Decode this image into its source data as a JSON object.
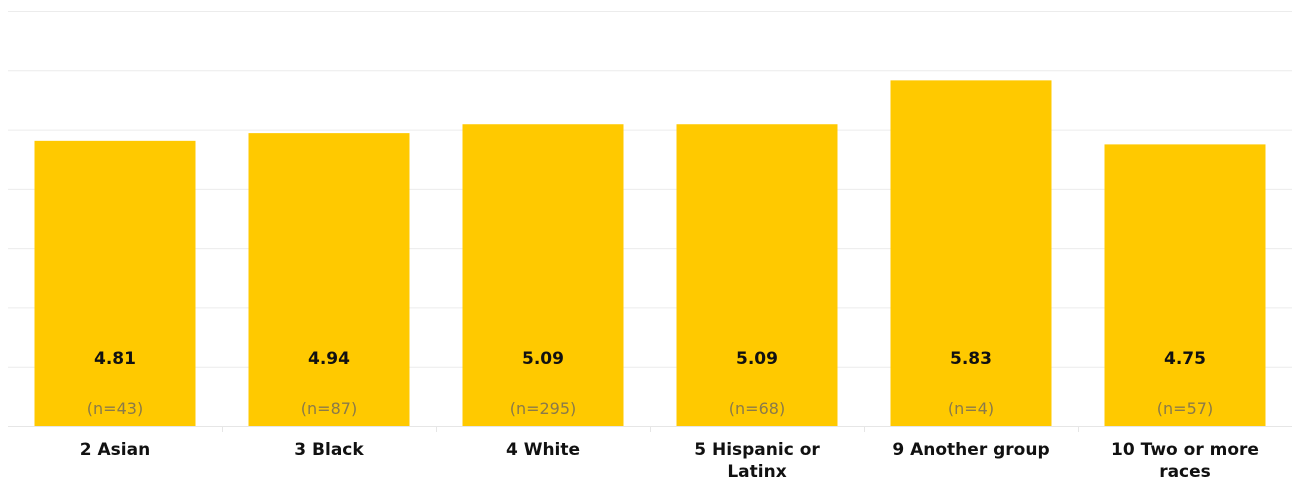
{
  "chart_data": {
    "type": "bar",
    "categories": [
      "2 Asian",
      "3 Black",
      "4 White",
      "5 Hispanic or Latinx",
      "9 Another group",
      "10 Two or more races"
    ],
    "category_lines": [
      [
        "2 Asian"
      ],
      [
        "3 Black"
      ],
      [
        "4 White"
      ],
      [
        "5 Hispanic or",
        "Latinx"
      ],
      [
        "9 Another group"
      ],
      [
        "10 Two or more",
        "races"
      ]
    ],
    "values": [
      4.81,
      4.94,
      5.09,
      5.09,
      5.83,
      4.75
    ],
    "value_labels": [
      "4.81",
      "4.94",
      "5.09",
      "5.09",
      "5.83",
      "4.75"
    ],
    "n_labels": [
      "(n=43)",
      "(n=87)",
      "(n=295)",
      "(n=68)",
      "(n=4)",
      "(n=57)"
    ],
    "ylim": [
      0,
      7
    ],
    "grid": true,
    "colors": {
      "bar": "#ffc900"
    }
  }
}
